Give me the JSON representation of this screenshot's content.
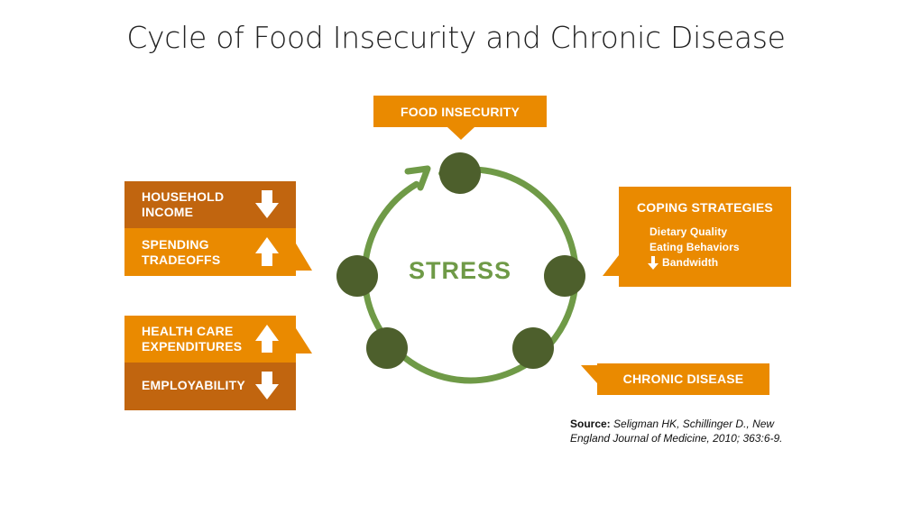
{
  "title": "Cycle of Food Insecurity and Chronic Disease",
  "center_label": "STRESS",
  "food_insecurity": "FOOD INSECURITY",
  "household_income": [
    "HOUSEHOLD",
    "INCOME"
  ],
  "spending_tradeoffs": [
    "SPENDING",
    "TRADEOFFS"
  ],
  "health_care": [
    "HEALTH CARE",
    "EXPENDITURES"
  ],
  "employability": "EMPLOYABILITY",
  "coping": {
    "title": "COPING STRATEGIES",
    "items": [
      "Dietary Quality",
      "Eating Behaviors",
      "Bandwidth"
    ]
  },
  "chronic_disease": "CHRONIC DISEASE",
  "source": {
    "label": "Source:",
    "line1": "Seligman HK, Schillinger D., New",
    "line2": "England Journal of Medicine, 2010; 363:6-9."
  },
  "colors": {
    "orange": "#ea8a00",
    "dark_orange": "#c1650f",
    "green_ring": "#6f9a47",
    "dark_green": "#4d5f2c",
    "text_green": "#6f9a47"
  },
  "icons": {
    "household_income": "arrow-down-icon",
    "spending_tradeoffs": "arrow-up-icon",
    "health_care": "arrow-up-icon",
    "employability": "arrow-down-icon",
    "bandwidth": "arrow-down-icon"
  }
}
